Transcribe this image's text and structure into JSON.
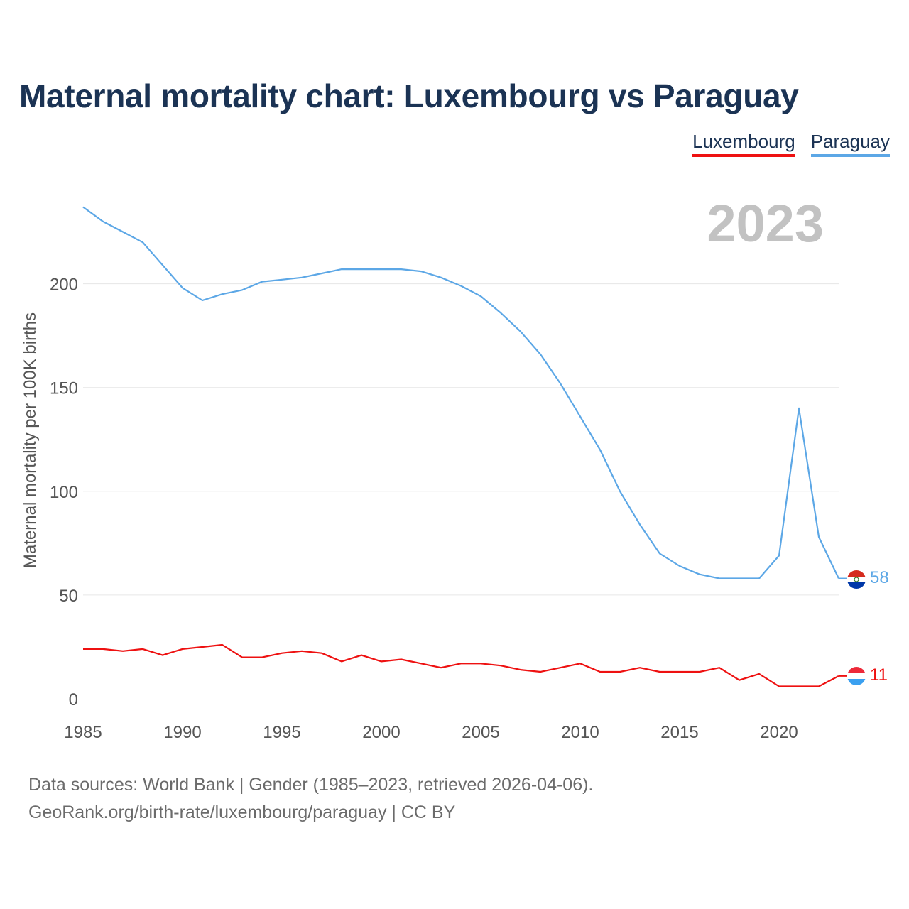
{
  "page": {
    "title": "Maternal mortality chart: Luxembourg vs Paraguay",
    "year_label": "2023",
    "footer_source": "Data sources: World Bank | Gender (1985–2023, retrieved 2026-04-06).",
    "footer_link": "GeoRank.org/birth-rate/luxembourg/paraguay",
    "footer_license": " | CC BY"
  },
  "legend": [
    {
      "label": "Luxembourg",
      "color": "#ee1111"
    },
    {
      "label": "Paraguay",
      "color": "#5ca7e6"
    }
  ],
  "chart_data": {
    "type": "line",
    "title": "Maternal mortality chart: Luxembourg vs Paraguay",
    "xlabel": "",
    "ylabel": "Maternal mortality per 100K births",
    "xlim": [
      1985,
      2023
    ],
    "ylim": [
      0,
      235
    ],
    "yticks": [
      0,
      50,
      100,
      150,
      200
    ],
    "xticks": [
      1985,
      1990,
      1995,
      2000,
      2005,
      2010,
      2015,
      2020
    ],
    "grid": true,
    "x": [
      1985,
      1986,
      1987,
      1988,
      1989,
      1990,
      1991,
      1992,
      1993,
      1994,
      1995,
      1996,
      1997,
      1998,
      1999,
      2000,
      2001,
      2002,
      2003,
      2004,
      2005,
      2006,
      2007,
      2008,
      2009,
      2010,
      2011,
      2012,
      2013,
      2014,
      2015,
      2016,
      2017,
      2018,
      2019,
      2020,
      2021,
      2022,
      2023
    ],
    "series": [
      {
        "name": "Paraguay",
        "color": "#5ca7e6",
        "end_label": "58",
        "flag": "paraguay-flag",
        "values": [
          237,
          230,
          225,
          220,
          209,
          198,
          192,
          195,
          197,
          201,
          202,
          203,
          205,
          207,
          207,
          207,
          207,
          206,
          203,
          199,
          194,
          186,
          177,
          166,
          152,
          136,
          120,
          100,
          84,
          70,
          64,
          60,
          58,
          58,
          58,
          69,
          140,
          78,
          58
        ]
      },
      {
        "name": "Luxembourg",
        "color": "#ee1111",
        "end_label": "11",
        "flag": "luxembourg-flag",
        "values": [
          24,
          24,
          23,
          24,
          21,
          24,
          25,
          26,
          20,
          20,
          22,
          23,
          22,
          18,
          21,
          18,
          19,
          17,
          15,
          17,
          17,
          16,
          14,
          13,
          15,
          17,
          13,
          13,
          15,
          13,
          13,
          13,
          15,
          9,
          12,
          6,
          6,
          6,
          11
        ]
      }
    ]
  }
}
